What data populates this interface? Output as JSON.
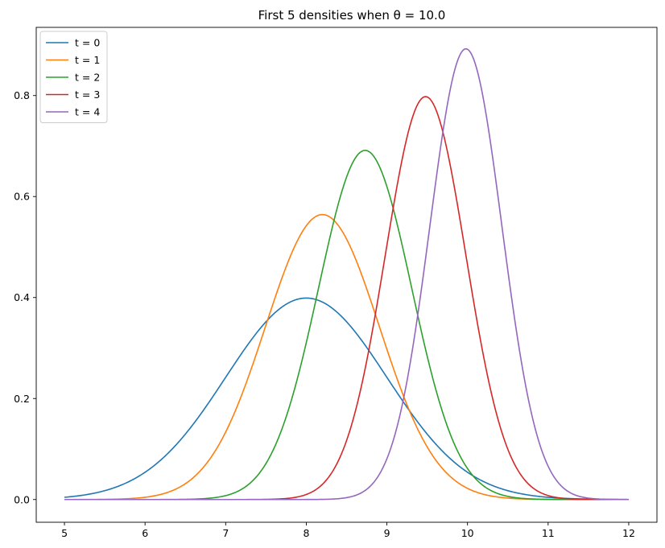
{
  "chart_data": {
    "type": "line",
    "title": "First 5 densities when θ = 10.0",
    "xlabel": "",
    "ylabel": "",
    "xlim": [
      4.65,
      12.35
    ],
    "ylim": [
      -0.045,
      0.935
    ],
    "xticks": [
      5,
      6,
      7,
      8,
      9,
      10,
      11,
      12
    ],
    "yticks": [
      0.0,
      0.2,
      0.4,
      0.6,
      0.8
    ],
    "grid": false,
    "legend_position": "top-left",
    "series": [
      {
        "name": "t = 0",
        "color": "#1f77b4",
        "mean": 8.0,
        "sd": 1.0
      },
      {
        "name": "t = 1",
        "color": "#ff7f0e",
        "mean": 8.2,
        "sd": 0.707
      },
      {
        "name": "t = 2",
        "color": "#2ca02c",
        "mean": 8.73,
        "sd": 0.577
      },
      {
        "name": "t = 3",
        "color": "#d62728",
        "mean": 9.48,
        "sd": 0.5
      },
      {
        "name": "t = 4",
        "color": "#9467bd",
        "mean": 9.98,
        "sd": 0.447
      }
    ],
    "x_range": [
      5,
      12
    ]
  }
}
